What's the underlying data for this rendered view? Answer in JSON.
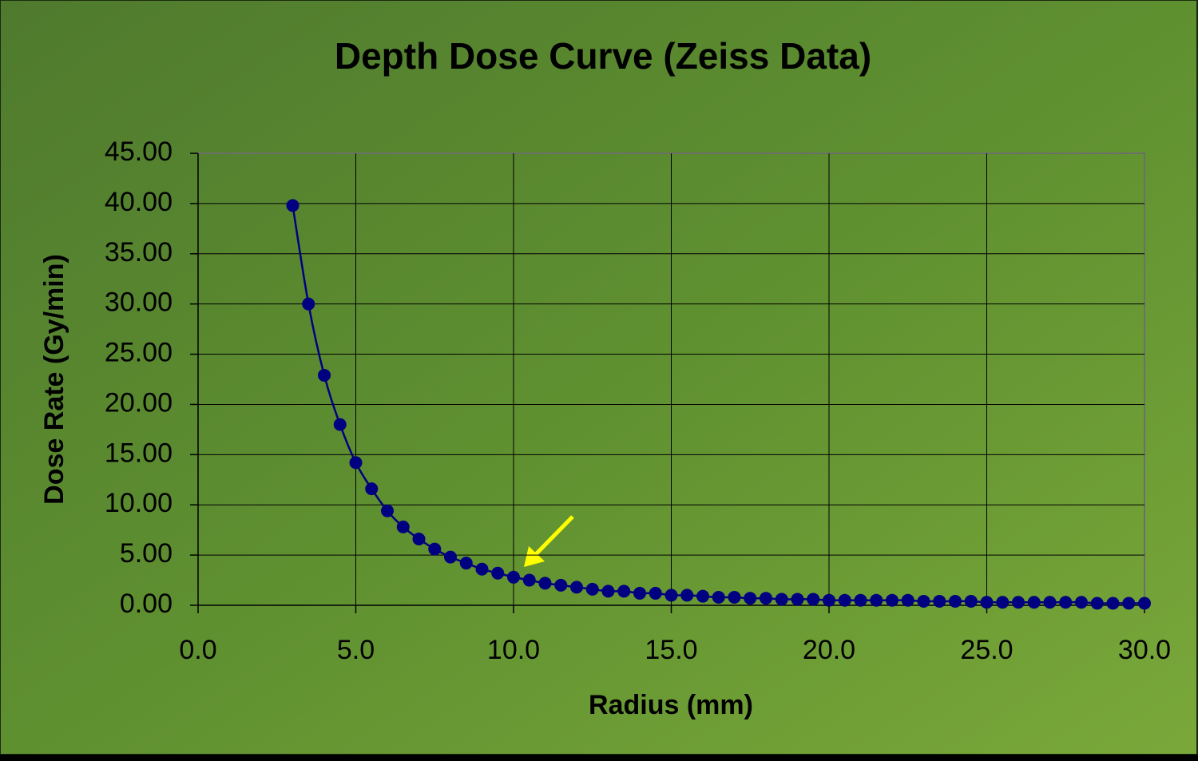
{
  "chart_data": {
    "type": "line",
    "title": "Depth Dose Curve (Zeiss Data)",
    "x_label": "Radius (mm)",
    "y_label": "Dose Rate (Gy/min)",
    "x": [
      3.0,
      3.5,
      4.0,
      4.5,
      5.0,
      5.5,
      6.0,
      6.5,
      7.0,
      7.5,
      8.0,
      8.5,
      9.0,
      9.5,
      10.0,
      10.5,
      11.0,
      11.5,
      12.0,
      12.5,
      13.0,
      13.5,
      14.0,
      14.5,
      15.0,
      15.5,
      16.0,
      16.5,
      17.0,
      17.5,
      18.0,
      18.5,
      19.0,
      19.5,
      20.0,
      20.5,
      21.0,
      21.5,
      22.0,
      22.5,
      23.0,
      23.5,
      24.0,
      24.5,
      25.0,
      25.5,
      26.0,
      26.5,
      27.0,
      27.5,
      28.0,
      28.5,
      29.0,
      29.5,
      30.0
    ],
    "values": [
      39.8,
      30.0,
      22.9,
      18.0,
      14.2,
      11.6,
      9.4,
      7.8,
      6.6,
      5.6,
      4.8,
      4.2,
      3.6,
      3.2,
      2.8,
      2.5,
      2.2,
      2.0,
      1.8,
      1.6,
      1.4,
      1.4,
      1.2,
      1.2,
      1.0,
      1.0,
      0.9,
      0.8,
      0.8,
      0.7,
      0.7,
      0.6,
      0.6,
      0.6,
      0.5,
      0.5,
      0.5,
      0.5,
      0.5,
      0.5,
      0.4,
      0.4,
      0.4,
      0.4,
      0.3,
      0.3,
      0.3,
      0.3,
      0.3,
      0.3,
      0.3,
      0.2,
      0.2,
      0.2,
      0.2
    ],
    "color": "#000080",
    "xlim": [
      0,
      30
    ],
    "ylim": [
      0,
      45
    ],
    "xticks": [
      {
        "value": 0,
        "label": "0.0"
      },
      {
        "value": 5,
        "label": "5.0"
      },
      {
        "value": 10,
        "label": "10.0"
      },
      {
        "value": 15,
        "label": "15.0"
      },
      {
        "value": 20,
        "label": "20.0"
      },
      {
        "value": 25,
        "label": "25.0"
      },
      {
        "value": 30,
        "label": "30.0"
      }
    ],
    "yticks": [
      {
        "value": 0,
        "label": "0.00"
      },
      {
        "value": 5,
        "label": "5.00"
      },
      {
        "value": 10,
        "label": "10.00"
      },
      {
        "value": 15,
        "label": "15.00"
      },
      {
        "value": 20,
        "label": "20.00"
      },
      {
        "value": 25,
        "label": "25.00"
      },
      {
        "value": 30,
        "label": "30.00"
      },
      {
        "value": 35,
        "label": "35.00"
      },
      {
        "value": 40,
        "label": "40.00"
      },
      {
        "value": 45,
        "label": "45.00"
      }
    ],
    "grid": true
  }
}
